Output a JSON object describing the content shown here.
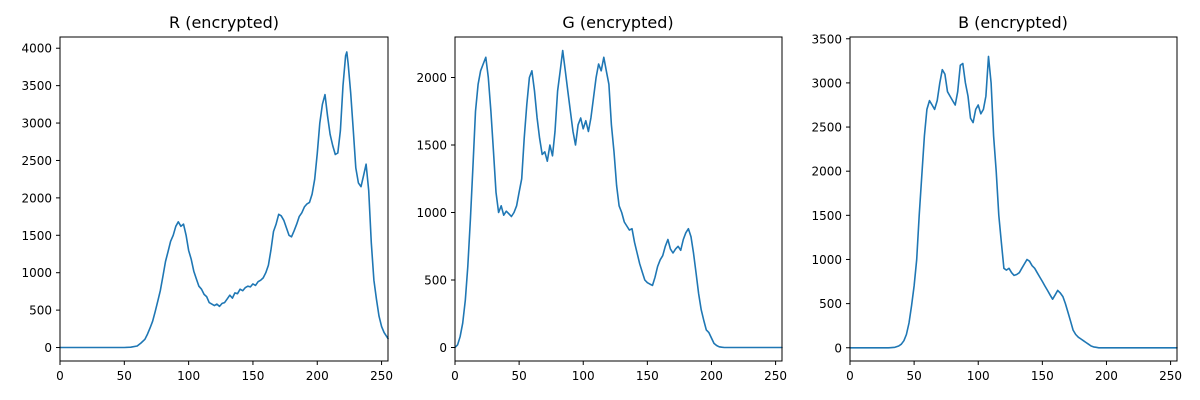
{
  "line_color": "#1f77b4",
  "chart_data": [
    {
      "type": "line",
      "title": "R (encrypted)",
      "xlim": [
        0,
        255
      ],
      "ylim": [
        -180,
        4150
      ],
      "xticks": [
        0,
        50,
        100,
        150,
        200,
        250
      ],
      "yticks": [
        0,
        500,
        1000,
        1500,
        2000,
        2500,
        3000,
        3500,
        4000
      ],
      "series": [
        {
          "x": [
            0,
            10,
            20,
            30,
            40,
            50,
            55,
            60,
            63,
            66,
            68,
            70,
            72,
            74,
            76,
            78,
            80,
            82,
            84,
            86,
            88,
            90,
            92,
            94,
            96,
            98,
            100,
            102,
            104,
            106,
            108,
            110,
            112,
            114,
            116,
            118,
            120,
            122,
            124,
            126,
            128,
            130,
            132,
            134,
            136,
            138,
            140,
            142,
            144,
            146,
            148,
            150,
            152,
            154,
            156,
            158,
            160,
            162,
            164,
            166,
            168,
            170,
            172,
            174,
            176,
            178,
            180,
            182,
            184,
            186,
            188,
            190,
            192,
            194,
            196,
            198,
            200,
            202,
            204,
            206,
            208,
            210,
            212,
            214,
            216,
            218,
            220,
            222,
            223,
            224,
            226,
            228,
            230,
            232,
            234,
            236,
            238,
            240,
            242,
            244,
            246,
            248,
            250,
            252,
            255
          ],
          "y": [
            0,
            0,
            0,
            0,
            0,
            0,
            5,
            20,
            60,
            110,
            180,
            260,
            350,
            480,
            620,
            760,
            950,
            1150,
            1280,
            1420,
            1500,
            1620,
            1680,
            1620,
            1650,
            1500,
            1300,
            1180,
            1020,
            920,
            820,
            780,
            710,
            680,
            600,
            580,
            560,
            580,
            550,
            590,
            600,
            650,
            700,
            660,
            730,
            720,
            780,
            760,
            800,
            820,
            810,
            850,
            830,
            880,
            900,
            930,
            1000,
            1100,
            1300,
            1550,
            1650,
            1780,
            1760,
            1700,
            1600,
            1500,
            1480,
            1560,
            1650,
            1750,
            1800,
            1880,
            1920,
            1940,
            2050,
            2250,
            2600,
            3000,
            3250,
            3380,
            3100,
            2850,
            2700,
            2580,
            2600,
            2900,
            3500,
            3900,
            3950,
            3800,
            3400,
            2900,
            2400,
            2200,
            2150,
            2300,
            2450,
            2100,
            1400,
            900,
            650,
            420,
            280,
            200,
            120
          ]
        }
      ]
    },
    {
      "type": "line",
      "title": "G (encrypted)",
      "xlim": [
        0,
        255
      ],
      "ylim": [
        -100,
        2300
      ],
      "xticks": [
        0,
        50,
        100,
        150,
        200,
        250
      ],
      "yticks": [
        0,
        500,
        1000,
        1500,
        2000
      ],
      "series": [
        {
          "x": [
            0,
            2,
            4,
            6,
            8,
            10,
            12,
            14,
            16,
            18,
            20,
            22,
            24,
            26,
            28,
            30,
            32,
            34,
            36,
            38,
            40,
            42,
            44,
            46,
            48,
            50,
            52,
            54,
            56,
            58,
            60,
            62,
            64,
            66,
            68,
            70,
            72,
            74,
            76,
            78,
            80,
            82,
            84,
            86,
            88,
            90,
            92,
            94,
            96,
            98,
            100,
            102,
            104,
            106,
            108,
            110,
            112,
            114,
            116,
            118,
            120,
            122,
            124,
            126,
            128,
            130,
            132,
            134,
            136,
            138,
            140,
            142,
            144,
            146,
            148,
            150,
            152,
            154,
            156,
            158,
            160,
            162,
            164,
            166,
            168,
            170,
            172,
            174,
            176,
            178,
            180,
            182,
            184,
            186,
            188,
            190,
            192,
            194,
            196,
            198,
            200,
            202,
            204,
            206,
            208,
            210,
            212,
            214,
            216,
            218,
            220,
            222,
            224,
            226,
            228,
            230,
            235,
            240,
            245,
            250,
            255
          ],
          "y": [
            0,
            20,
            80,
            180,
            350,
            600,
            950,
            1350,
            1750,
            1950,
            2050,
            2100,
            2150,
            2000,
            1750,
            1450,
            1150,
            1000,
            1050,
            980,
            1010,
            990,
            970,
            1000,
            1050,
            1150,
            1250,
            1550,
            1800,
            2000,
            2050,
            1900,
            1700,
            1550,
            1430,
            1450,
            1380,
            1500,
            1420,
            1600,
            1900,
            2050,
            2200,
            2050,
            1900,
            1750,
            1600,
            1500,
            1650,
            1700,
            1620,
            1680,
            1600,
            1700,
            1850,
            2000,
            2100,
            2050,
            2150,
            2050,
            1950,
            1650,
            1450,
            1200,
            1050,
            1000,
            930,
            900,
            870,
            880,
            780,
            700,
            620,
            560,
            500,
            480,
            470,
            460,
            520,
            600,
            650,
            680,
            750,
            800,
            730,
            700,
            730,
            750,
            720,
            800,
            850,
            880,
            820,
            700,
            550,
            400,
            280,
            200,
            130,
            110,
            70,
            30,
            15,
            5,
            2,
            0,
            0,
            0,
            0,
            0,
            0,
            0,
            0,
            0,
            0,
            0,
            0,
            0,
            0,
            0,
            0
          ]
        }
      ]
    },
    {
      "type": "line",
      "title": "B (encrypted)",
      "xlim": [
        0,
        255
      ],
      "ylim": [
        -150,
        3520
      ],
      "xticks": [
        0,
        50,
        100,
        150,
        200,
        250
      ],
      "yticks": [
        0,
        500,
        1000,
        1500,
        2000,
        2500,
        3000,
        3500
      ],
      "series": [
        {
          "x": [
            0,
            10,
            20,
            30,
            35,
            38,
            40,
            42,
            44,
            46,
            48,
            50,
            52,
            54,
            56,
            58,
            60,
            62,
            64,
            66,
            68,
            70,
            72,
            74,
            76,
            78,
            80,
            82,
            84,
            86,
            88,
            90,
            92,
            94,
            96,
            98,
            100,
            102,
            104,
            106,
            108,
            110,
            112,
            114,
            116,
            118,
            120,
            122,
            124,
            126,
            128,
            130,
            132,
            134,
            136,
            138,
            140,
            142,
            144,
            146,
            148,
            150,
            152,
            154,
            156,
            158,
            160,
            162,
            164,
            166,
            168,
            170,
            172,
            174,
            176,
            178,
            180,
            182,
            184,
            186,
            188,
            190,
            192,
            194,
            196,
            198,
            200,
            202,
            204,
            206,
            208,
            210,
            215,
            220,
            230,
            240,
            250,
            255
          ],
          "y": [
            0,
            0,
            0,
            0,
            5,
            20,
            40,
            80,
            150,
            280,
            480,
            700,
            1000,
            1500,
            1950,
            2400,
            2700,
            2800,
            2750,
            2700,
            2800,
            3000,
            3150,
            3100,
            2900,
            2850,
            2800,
            2750,
            2900,
            3200,
            3220,
            3000,
            2850,
            2600,
            2550,
            2700,
            2750,
            2650,
            2700,
            2850,
            3300,
            3000,
            2400,
            2000,
            1500,
            1200,
            900,
            880,
            900,
            850,
            820,
            830,
            850,
            900,
            950,
            1000,
            980,
            930,
            900,
            850,
            800,
            750,
            700,
            650,
            600,
            550,
            600,
            650,
            620,
            580,
            500,
            400,
            300,
            200,
            150,
            120,
            100,
            80,
            60,
            40,
            20,
            10,
            5,
            0,
            0,
            0,
            0,
            0,
            0,
            0,
            0,
            0,
            0,
            0,
            0,
            0,
            0,
            0
          ]
        }
      ]
    }
  ]
}
